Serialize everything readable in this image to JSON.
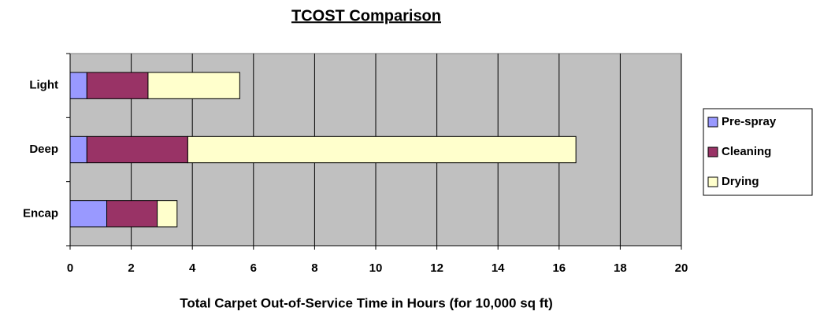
{
  "chart_data": {
    "type": "stacked-barh",
    "title": "TCOST Comparison",
    "x_label": "Total Carpet Out-of-Service Time in Hours (for 10,000 sq ft)",
    "categories": [
      "Light",
      "Deep",
      "Encap"
    ],
    "series": [
      {
        "name": "Pre-spray",
        "color": "#9999ff",
        "values": [
          0.55,
          0.55,
          1.2
        ]
      },
      {
        "name": "Cleaning",
        "color": "#993366",
        "values": [
          2.0,
          3.3,
          1.65
        ]
      },
      {
        "name": "Drying",
        "color": "#ffffcc",
        "values": [
          3.0,
          12.7,
          0.65
        ]
      }
    ],
    "xlim": [
      0,
      20
    ],
    "xticks": [
      0,
      2,
      4,
      6,
      8,
      10,
      12,
      14,
      16,
      18,
      20
    ],
    "grid": true,
    "legend": "right",
    "plot_background": "#c0c0c0"
  }
}
